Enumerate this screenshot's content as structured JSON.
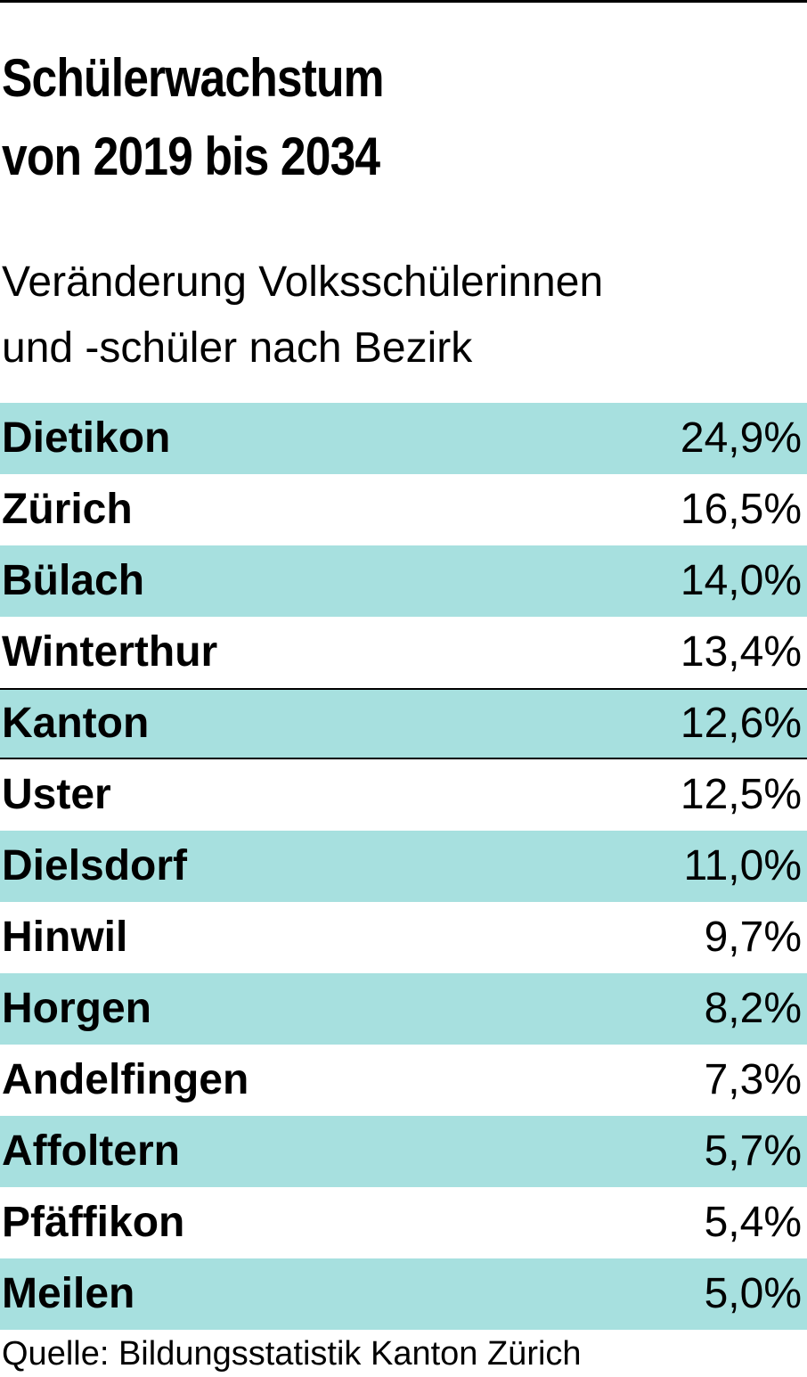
{
  "chart_data": {
    "type": "table",
    "title": [
      "Schülerwachstum",
      "von 2019 bis 2034"
    ],
    "subtitle": [
      "Veränderung Volksschülerinnen",
      "und -schüler nach Bezirk"
    ],
    "rows": [
      {
        "label": "Dietikon",
        "value": 24.9,
        "display": "24,9%",
        "shaded": true
      },
      {
        "label": "Zürich",
        "value": 16.5,
        "display": "16,5%",
        "shaded": false
      },
      {
        "label": "Bülach",
        "value": 14.0,
        "display": "14,0%",
        "shaded": true
      },
      {
        "label": "Winterthur",
        "value": 13.4,
        "display": "13,4%",
        "shaded": false
      },
      {
        "label": "Kanton",
        "value": 12.6,
        "display": "12,6%",
        "shaded": true,
        "total": true
      },
      {
        "label": "Uster",
        "value": 12.5,
        "display": "12,5%",
        "shaded": false
      },
      {
        "label": "Dielsdorf",
        "value": 11.0,
        "display": "11,0%",
        "shaded": true
      },
      {
        "label": "Hinwil",
        "value": 9.7,
        "display": "9,7%",
        "shaded": false
      },
      {
        "label": "Horgen",
        "value": 8.2,
        "display": "8,2%",
        "shaded": true
      },
      {
        "label": "Andelfingen",
        "value": 7.3,
        "display": "7,3%",
        "shaded": false
      },
      {
        "label": "Affoltern",
        "value": 5.7,
        "display": "5,7%",
        "shaded": true
      },
      {
        "label": "Pfäffikon",
        "value": 5.4,
        "display": "5,4%",
        "shaded": false
      },
      {
        "label": "Meilen",
        "value": 5.0,
        "display": "5,0%",
        "shaded": true
      }
    ],
    "source": "Quelle: Bildungsstatistik Kanton Zürich"
  },
  "colors": {
    "row_shade": "#a7e0df",
    "text": "#000000",
    "rule": "#000000"
  }
}
